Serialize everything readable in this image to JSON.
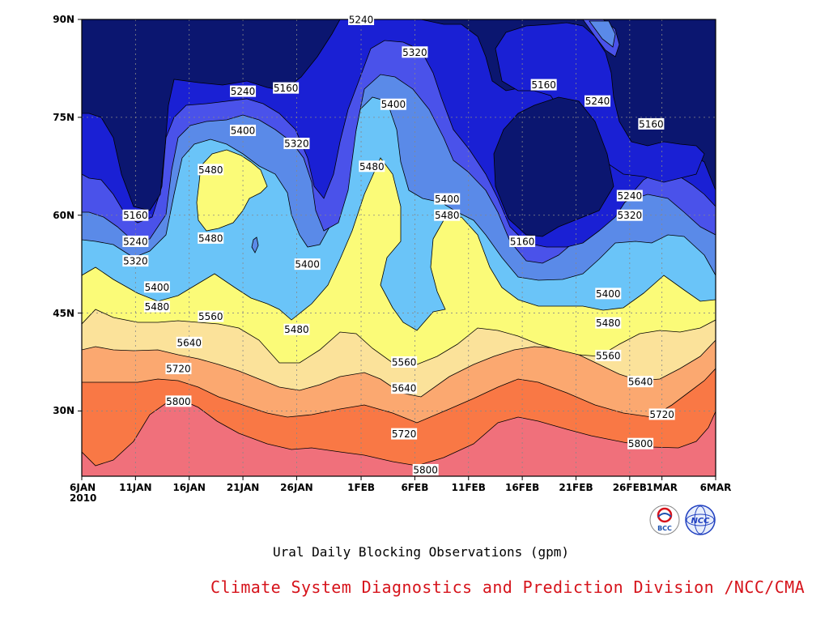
{
  "chart_data": {
    "type": "heatmap",
    "subtype": "filled-contour",
    "title": "Ural Daily Blocking Observations (gpm)",
    "x_tick_labels": [
      "6JAN",
      "11JAN",
      "16JAN",
      "21JAN",
      "26JAN",
      "1FEB",
      "6FEB",
      "11FEB",
      "16FEB",
      "21FEB",
      "26FEB",
      "1MAR",
      "6MAR"
    ],
    "x_year_label": "2010",
    "y_tick_labels": [
      "90N",
      "75N",
      "60N",
      "45N",
      "30N"
    ],
    "ylim": [
      20,
      90
    ],
    "grid": true,
    "contour_levels": [
      5160,
      5240,
      5320,
      5400,
      5480,
      5560,
      5640,
      5720,
      5800
    ],
    "fill_colors": [
      "#0b1670",
      "#1a20d4",
      "#4a52ea",
      "#5a8ae8",
      "#6ac4f8",
      "#fbfb78",
      "#fbe29a",
      "#fba870",
      "#f97845",
      "#f0707b"
    ],
    "contour_labels": [
      {
        "text": "5240",
        "date": "1FEB",
        "lat": 90
      },
      {
        "text": "5320",
        "date": "6FEB",
        "lat": 85
      },
      {
        "text": "5160",
        "date": "18FEB",
        "lat": 80
      },
      {
        "text": "5240",
        "date": "23FEB",
        "lat": 77.5
      },
      {
        "text": "5160",
        "date": "28FEB",
        "lat": 74
      },
      {
        "text": "5240",
        "date": "21JAN",
        "lat": 79
      },
      {
        "text": "5160",
        "date": "25JAN",
        "lat": 79.5
      },
      {
        "text": "5400",
        "date": "4FEB",
        "lat": 77
      },
      {
        "text": "5400",
        "date": "21JAN",
        "lat": 73
      },
      {
        "text": "5320",
        "date": "26JAN",
        "lat": 71
      },
      {
        "text": "5480",
        "date": "18JAN",
        "lat": 67
      },
      {
        "text": "5480",
        "date": "2FEB",
        "lat": 67.5
      },
      {
        "text": "5400",
        "date": "9FEB",
        "lat": 62.5
      },
      {
        "text": "5480",
        "date": "9FEB",
        "lat": 60
      },
      {
        "text": "5160",
        "date": "11JAN",
        "lat": 60
      },
      {
        "text": "5240",
        "date": "11JAN",
        "lat": 56
      },
      {
        "text": "5320",
        "date": "11JAN",
        "lat": 53
      },
      {
        "text": "5480",
        "date": "18JAN",
        "lat": 56.5
      },
      {
        "text": "5400",
        "date": "27JAN",
        "lat": 52.5
      },
      {
        "text": "5160",
        "date": "16FEB",
        "lat": 56
      },
      {
        "text": "5240",
        "date": "26FEB",
        "lat": 63
      },
      {
        "text": "5320",
        "date": "26FEB",
        "lat": 60
      },
      {
        "text": "5400",
        "date": "13JAN",
        "lat": 49
      },
      {
        "text": "5400",
        "date": "24FEB",
        "lat": 48
      },
      {
        "text": "5480",
        "date": "13JAN",
        "lat": 46
      },
      {
        "text": "5560",
        "date": "18JAN",
        "lat": 44.5
      },
      {
        "text": "5480",
        "date": "26JAN",
        "lat": 42.5
      },
      {
        "text": "5480",
        "date": "24FEB",
        "lat": 43.5
      },
      {
        "text": "5640",
        "date": "16JAN",
        "lat": 40.5
      },
      {
        "text": "5560",
        "date": "24FEB",
        "lat": 38.5
      },
      {
        "text": "5720",
        "date": "15JAN",
        "lat": 36.5
      },
      {
        "text": "5560",
        "date": "5FEB",
        "lat": 37.5
      },
      {
        "text": "5640",
        "date": "5FEB",
        "lat": 33.5
      },
      {
        "text": "5640",
        "date": "27FEB",
        "lat": 34.5
      },
      {
        "text": "5800",
        "date": "15JAN",
        "lat": 31.5
      },
      {
        "text": "5720",
        "date": "1MAR",
        "lat": 29.5
      },
      {
        "text": "5720",
        "date": "5FEB",
        "lat": 26.5
      },
      {
        "text": "5800",
        "date": "27FEB",
        "lat": 25
      },
      {
        "text": "5800",
        "date": "7FEB",
        "lat": 21
      }
    ]
  },
  "credit": "Climate System Diagnostics and Prediction Division /NCC/CMA",
  "logos": [
    {
      "icon": "bcc-logo",
      "text": "BCC"
    },
    {
      "icon": "ncc-logo",
      "text": "NCC"
    }
  ]
}
